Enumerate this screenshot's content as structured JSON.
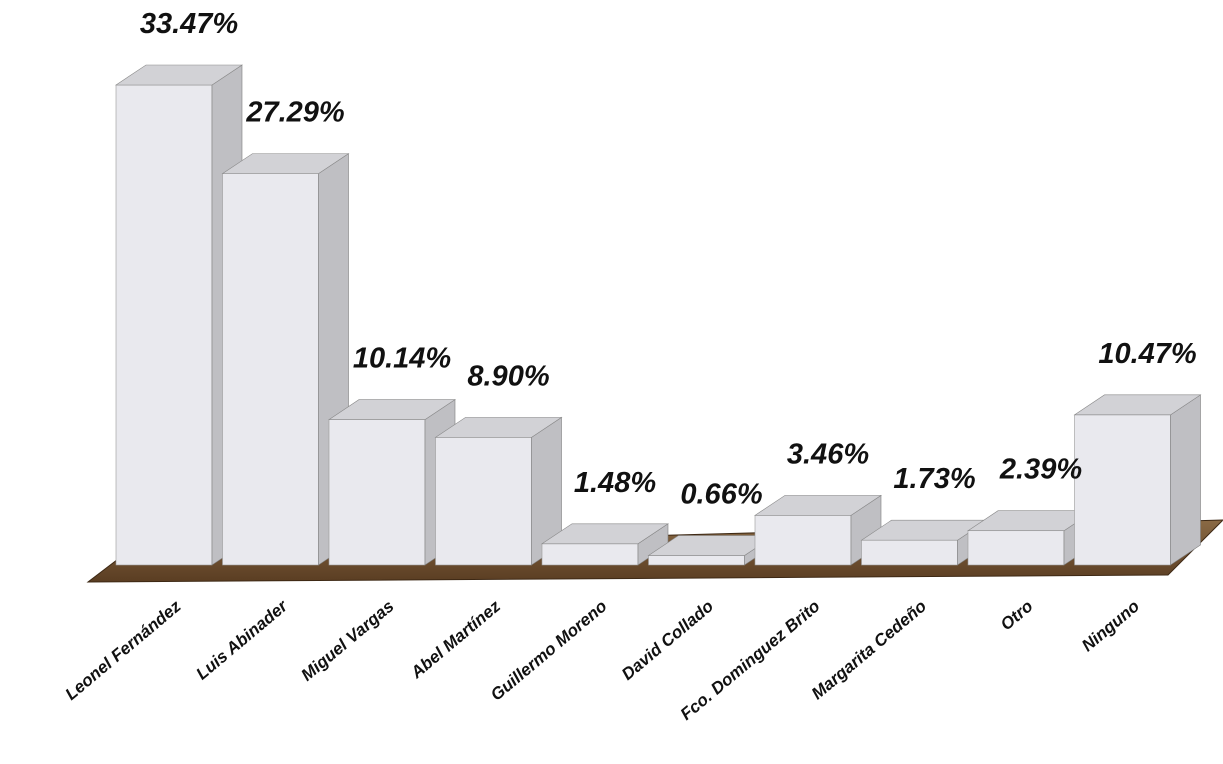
{
  "chart_data": {
    "type": "bar3d",
    "categories": [
      "Leonel Fernández",
      "Luis Abinader",
      "Miguel Vargas",
      "Abel Martínez",
      "Guillermo Moreno",
      "David Collado",
      "Fco. Dominguez Brito",
      "Margarita Cedeño",
      "Otro",
      "Ninguno"
    ],
    "values": [
      33.47,
      27.29,
      10.14,
      8.9,
      1.48,
      0.66,
      3.46,
      1.73,
      2.39,
      10.47
    ],
    "value_labels": [
      "33.47%",
      "27.29%",
      "10.14%",
      "8.90%",
      "1.48%",
      "0.66%",
      "3.46%",
      "1.73%",
      "2.39%",
      "10.47%"
    ],
    "color": "#e9e9ee"
  }
}
